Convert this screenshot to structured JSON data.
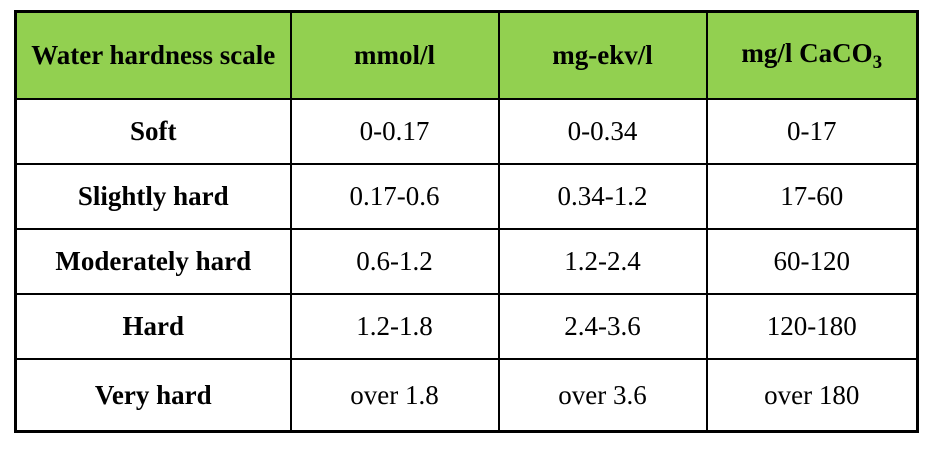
{
  "table": {
    "headers": {
      "scale": "Water hardness scale",
      "mmol": "mmol/l",
      "mgekv": "mg-ekv/l",
      "caco3_prefix": "mg/l CaCO",
      "caco3_subscript": "3"
    },
    "rows": [
      {
        "label": "Soft",
        "mmol": "0-0.17",
        "mgekv": "0-0.34",
        "caco3": "0-17"
      },
      {
        "label": "Slightly hard",
        "mmol": "0.17-0.6",
        "mgekv": "0.34-1.2",
        "caco3": "17-60"
      },
      {
        "label": "Moderately hard",
        "mmol": "0.6-1.2",
        "mgekv": "1.2-2.4",
        "caco3": "60-120"
      },
      {
        "label": "Hard",
        "mmol": "1.2-1.8",
        "mgekv": "2.4-3.6",
        "caco3": "120-180"
      },
      {
        "label": "Very hard",
        "mmol": "over 1.8",
        "mgekv": "over 3.6",
        "caco3": "over 180"
      }
    ],
    "colors": {
      "header_background": "#92d050",
      "border": "#000000"
    }
  }
}
